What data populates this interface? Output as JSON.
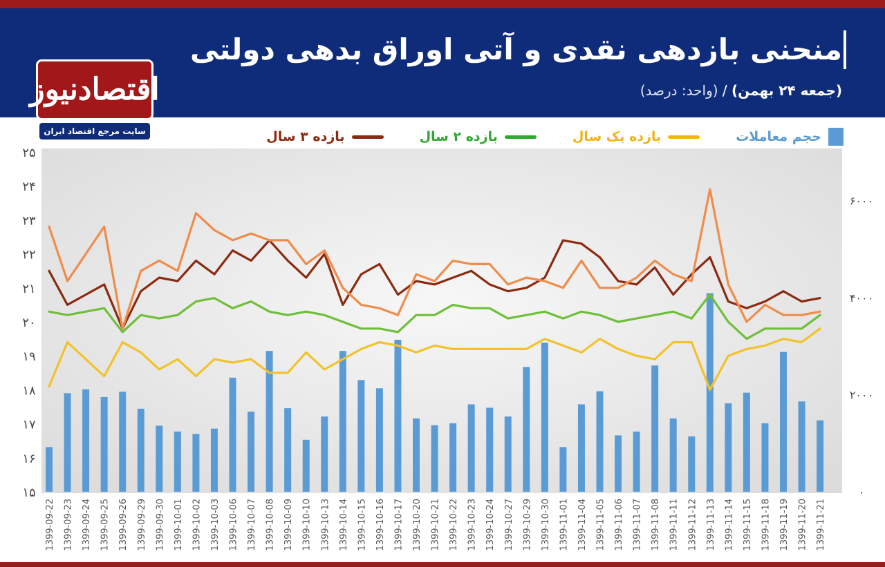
{
  "header": {
    "title": "منحنی بازدهی نقدی و آتی اوراق بدهی دولتی",
    "subtitle_date": "(جمعه ۲۴ بهمن)",
    "subtitle_sep": "/",
    "subtitle_unit": "(واحد: درصد)"
  },
  "logo": {
    "name": "اقتصادنیوز",
    "tagline": "سایت مرجع اقتصاد ایران"
  },
  "legend": [
    {
      "label": "بازده ۳ سال",
      "color": "#8b2a10",
      "kind": "line"
    },
    {
      "label": "بازده ۲ سال",
      "color": "#2fa82f",
      "kind": "line"
    },
    {
      "label": "بازده یک سال",
      "color": "#f2b418",
      "kind": "line"
    },
    {
      "label": "حجم معاملات",
      "color": "#5b9bd5",
      "kind": "bar"
    }
  ],
  "chart_data": {
    "type": "bar",
    "categories": [
      "1399-09-22",
      "1399-09-23",
      "1399-09-24",
      "1399-09-25",
      "1399-09-26",
      "1399-09-29",
      "1399-09-30",
      "1399-10-01",
      "1399-10-02",
      "1399-10-03",
      "1399-10-06",
      "1399-10-07",
      "1399-10-08",
      "1399-10-09",
      "1399-10-10",
      "1399-10-13",
      "1399-10-14",
      "1399-10-15",
      "1399-10-16",
      "1399-10-17",
      "1399-10-20",
      "1399-10-21",
      "1399-10-22",
      "1399-10-23",
      "1399-10-24",
      "1399-10-27",
      "1399-10-29",
      "1399-10-30",
      "1399-11-01",
      "1399-11-04",
      "1399-11-05",
      "1399-11-06",
      "1399-11-07",
      "1399-11-08",
      "1399-11-11",
      "1399-11-12",
      "1399-11-13",
      "1399-11-14",
      "1399-11-15",
      "1399-11-18",
      "1399-11-19",
      "1399-11-20",
      "1399-11-21"
    ],
    "left_axis": {
      "ylim": [
        15,
        25
      ],
      "ticks": [
        "۲۵",
        "۲۴",
        "۲۳",
        "۲۲",
        "۲۱",
        "۲۰",
        "۱۹",
        "۱۸",
        "۱۷",
        "۱۶",
        "۱۵"
      ]
    },
    "right_axis": {
      "ylim": [
        0,
        7000
      ],
      "ticks": [
        "۶۰۰۰",
        "۴۰۰۰",
        "۲۰۰۰",
        "۰"
      ]
    },
    "grid": false,
    "legend_position": "top",
    "series": [
      {
        "name": "حجم معاملات",
        "kind": "bar",
        "axis": "right",
        "color": "#5b9bd5",
        "values": [
          920,
          2030,
          2110,
          1950,
          2060,
          1710,
          1360,
          1240,
          1190,
          1300,
          2350,
          1650,
          2900,
          1720,
          1070,
          1550,
          2900,
          2300,
          2130,
          3130,
          1510,
          1370,
          1410,
          1800,
          1730,
          1550,
          2570,
          3070,
          920,
          1800,
          2070,
          1160,
          1240,
          2600,
          1510,
          1140,
          4090,
          1820,
          2040,
          1410,
          2880,
          1860,
          1470
        ]
      },
      {
        "name": "بازده ۳ سال",
        "kind": "line",
        "axis": "left",
        "color": "#8b2a10",
        "values": [
          21.5,
          20.5,
          20.8,
          21.1,
          19.8,
          20.9,
          21.3,
          21.2,
          21.8,
          21.4,
          22.1,
          21.8,
          22.4,
          21.8,
          21.3,
          22.0,
          20.5,
          21.4,
          21.7,
          20.8,
          21.2,
          21.1,
          21.3,
          21.5,
          21.1,
          20.9,
          21.0,
          21.3,
          22.4,
          22.3,
          21.9,
          21.2,
          21.1,
          21.6,
          20.8,
          21.4,
          21.9,
          20.6,
          20.4,
          20.6,
          20.9,
          20.6,
          20.7
        ]
      },
      {
        "name": "",
        "kind": "line",
        "axis": "left",
        "color": "#f08c4a",
        "values": [
          22.8,
          21.2,
          22.0,
          22.8,
          19.8,
          21.5,
          21.8,
          21.5,
          23.2,
          22.7,
          22.4,
          22.6,
          22.4,
          22.4,
          21.7,
          22.1,
          21.0,
          20.5,
          20.4,
          20.2,
          21.4,
          21.2,
          21.8,
          21.7,
          21.7,
          21.1,
          21.3,
          21.2,
          21.0,
          21.8,
          21.0,
          21.0,
          21.3,
          21.8,
          21.4,
          21.2,
          23.9,
          21.1,
          20.0,
          20.5,
          20.2,
          20.2,
          20.3
        ]
      },
      {
        "name": "بازده ۲ سال",
        "kind": "line",
        "axis": "left",
        "color": "#6fbf3a",
        "values": [
          20.3,
          20.2,
          20.3,
          20.4,
          19.7,
          20.2,
          20.1,
          20.2,
          20.6,
          20.7,
          20.4,
          20.6,
          20.3,
          20.2,
          20.3,
          20.2,
          20.0,
          19.8,
          19.8,
          19.7,
          20.2,
          20.2,
          20.5,
          20.4,
          20.4,
          20.1,
          20.2,
          20.3,
          20.1,
          20.3,
          20.2,
          20.0,
          20.1,
          20.2,
          20.3,
          20.1,
          20.8,
          20.0,
          19.5,
          19.8,
          19.8,
          19.8,
          20.2
        ]
      },
      {
        "name": "بازده یک سال",
        "kind": "line",
        "axis": "left",
        "color": "#f2c22a",
        "values": [
          18.1,
          19.4,
          18.9,
          18.4,
          19.4,
          19.1,
          18.6,
          18.9,
          18.4,
          18.9,
          18.8,
          18.9,
          18.5,
          18.5,
          19.1,
          18.6,
          18.9,
          19.2,
          19.4,
          19.3,
          19.1,
          19.3,
          19.2,
          19.2,
          19.2,
          19.2,
          19.2,
          19.5,
          19.3,
          19.1,
          19.5,
          19.2,
          19.0,
          18.9,
          19.4,
          19.4,
          18.0,
          19.0,
          19.2,
          19.3,
          19.5,
          19.4,
          19.8
        ]
      }
    ]
  }
}
